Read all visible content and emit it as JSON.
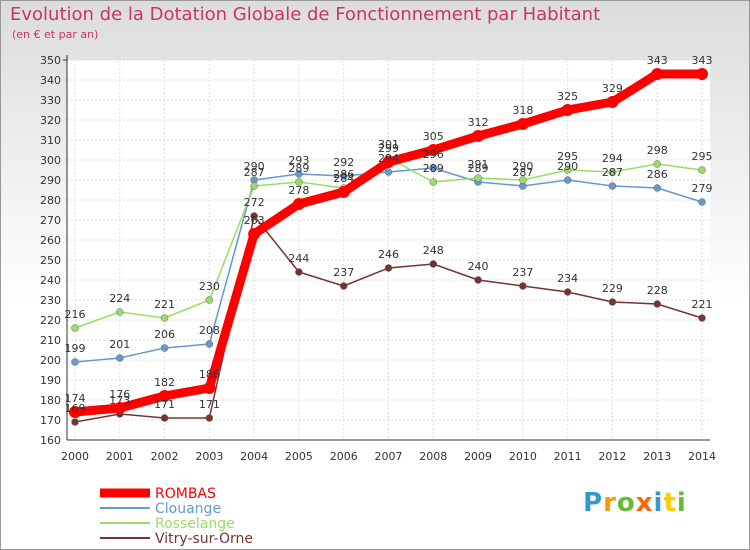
{
  "title": "Evolution de la Dotation Globale de Fonctionnement par Habitant",
  "subtitle": "(en € et par an)",
  "logo": {
    "letters": [
      "P",
      "r",
      "o",
      "x",
      "i",
      "t",
      "i"
    ],
    "colors": [
      "#3399cc",
      "#ff9900",
      "#66bb33",
      "#ff6600",
      "#3399cc",
      "#ffcc00",
      "#66bb33"
    ]
  },
  "chart_data": {
    "type": "line",
    "x": [
      "2000",
      "2001",
      "2002",
      "2003",
      "2004",
      "2005",
      "2006",
      "2007",
      "2008",
      "2009",
      "2010",
      "2011",
      "2012",
      "2013",
      "2014"
    ],
    "ylim": [
      160,
      350
    ],
    "yticks": [
      160,
      170,
      180,
      190,
      200,
      210,
      220,
      230,
      240,
      250,
      260,
      270,
      280,
      290,
      300,
      310,
      320,
      330,
      340,
      350
    ],
    "grid": true,
    "legend_position": "bottom-left",
    "series": [
      {
        "name": "ROMBAS",
        "color": "#ff0000",
        "values": [
          174,
          176,
          182,
          186,
          263,
          278,
          284,
          299,
          305,
          312,
          318,
          325,
          329,
          343,
          343
        ]
      },
      {
        "name": "Clouange",
        "color": "#6699cc",
        "values": [
          199,
          201,
          206,
          208,
          290,
          293,
          292,
          294,
          296,
          289,
          287,
          290,
          287,
          286,
          279
        ]
      },
      {
        "name": "Rosselange",
        "color": "#99dd66",
        "values": [
          216,
          224,
          221,
          230,
          287,
          289,
          286,
          301,
          289,
          291,
          290,
          295,
          294,
          298,
          295
        ]
      },
      {
        "name": "Vitry-sur-Orne",
        "color": "#773333",
        "values": [
          169,
          173,
          171,
          171,
          272,
          244,
          237,
          246,
          248,
          240,
          237,
          234,
          229,
          228,
          221
        ]
      }
    ]
  }
}
